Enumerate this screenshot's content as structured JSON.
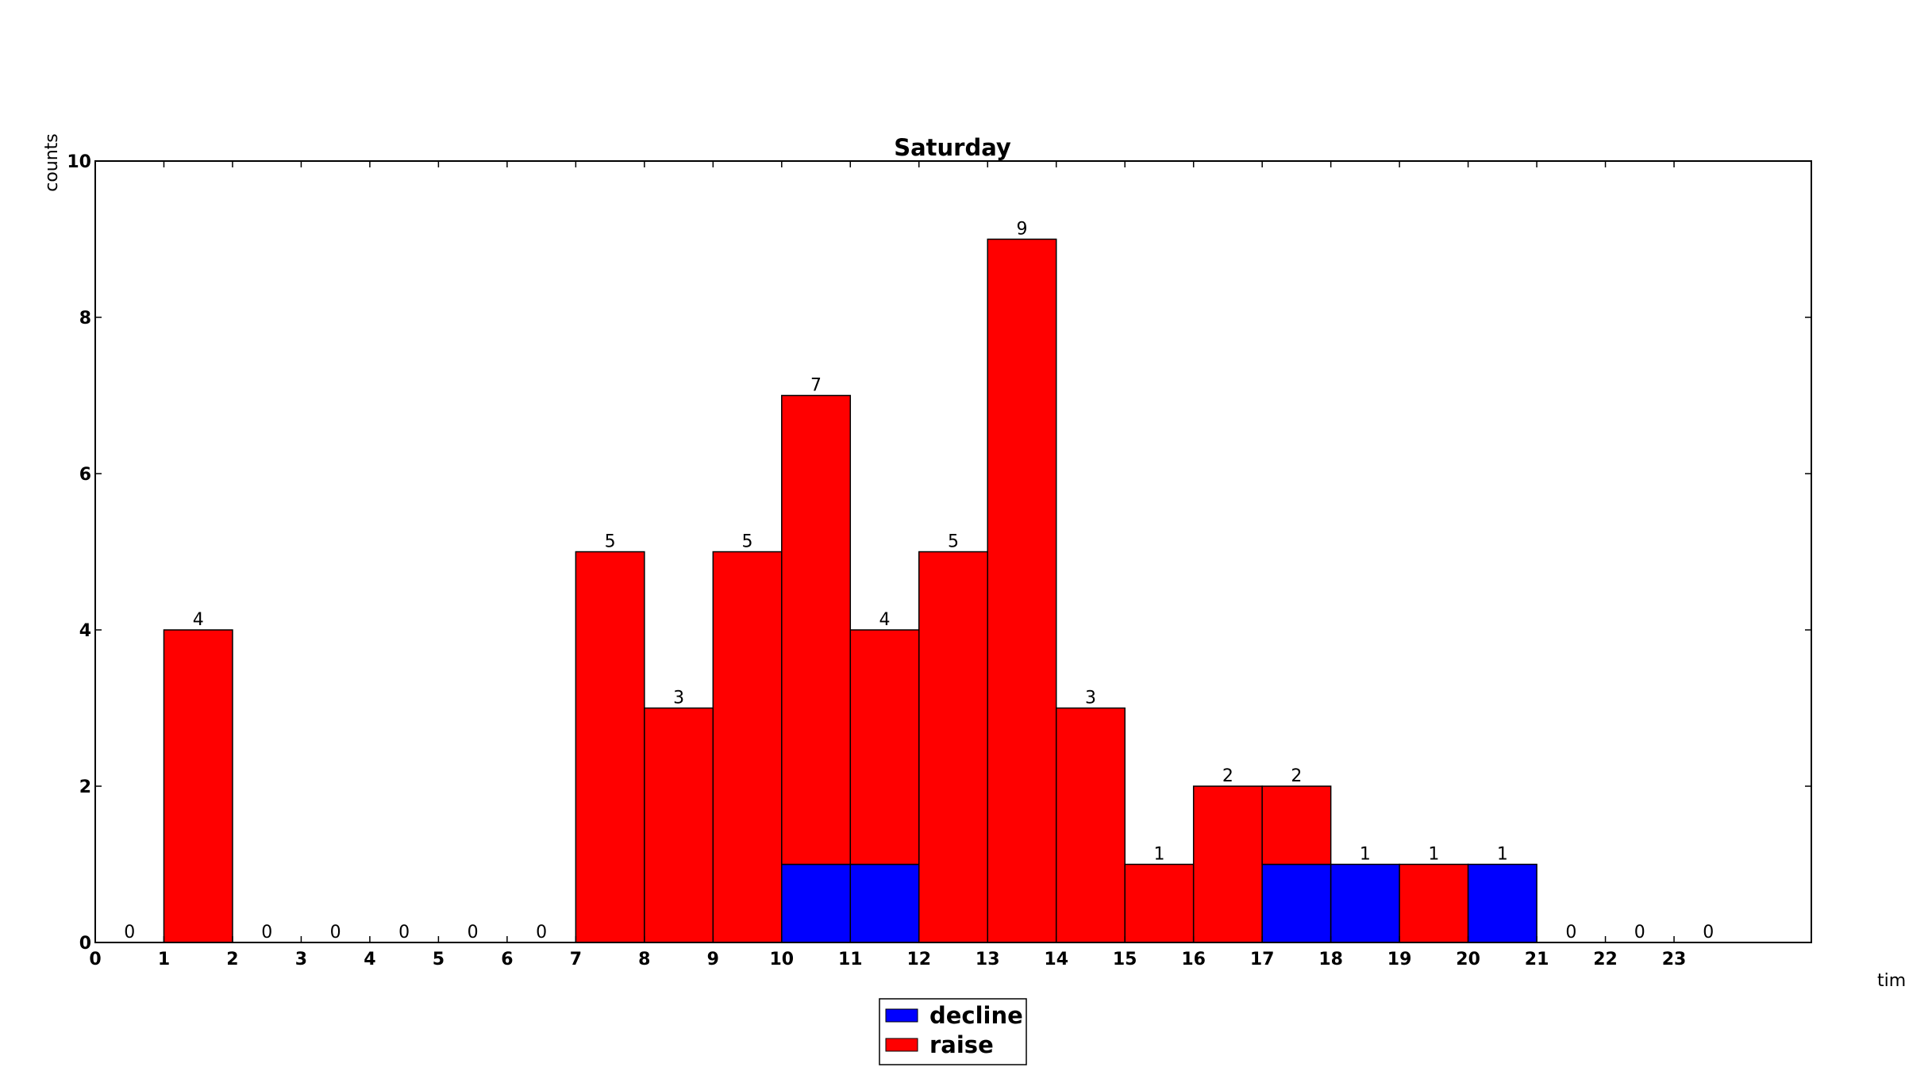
{
  "chart_data": {
    "type": "bar",
    "title": "Saturday",
    "xlabel": "tim",
    "ylabel": "counts",
    "ylim": [
      0,
      10
    ],
    "xlim": [
      0,
      25
    ],
    "yticks": [
      "0",
      "2",
      "4",
      "6",
      "8",
      "10"
    ],
    "categories": [
      "0",
      "1",
      "2",
      "3",
      "4",
      "5",
      "6",
      "7",
      "8",
      "9",
      "10",
      "11",
      "12",
      "13",
      "14",
      "15",
      "16",
      "17",
      "18",
      "19",
      "20",
      "21",
      "22",
      "23"
    ],
    "series": [
      {
        "name": "decline",
        "color": "#0000ff",
        "values": [
          0,
          0,
          0,
          0,
          0,
          0,
          0,
          0,
          0,
          0,
          1,
          1,
          0,
          0,
          0,
          0,
          0,
          1,
          1,
          0,
          1,
          0,
          0,
          0
        ]
      },
      {
        "name": "raise",
        "color": "#ff0000",
        "values": [
          0,
          4,
          0,
          0,
          0,
          0,
          0,
          5,
          3,
          5,
          6,
          3,
          5,
          9,
          3,
          1,
          2,
          1,
          0,
          1,
          0,
          0,
          0,
          0
        ]
      }
    ],
    "totals": [
      0,
      4,
      0,
      0,
      0,
      0,
      0,
      5,
      3,
      5,
      7,
      4,
      5,
      9,
      3,
      1,
      2,
      2,
      1,
      1,
      1,
      0,
      0,
      0
    ],
    "data_labels": [
      "0",
      "4",
      "0",
      "0",
      "0",
      "0",
      "0",
      "5",
      "3",
      "5",
      "7",
      "4",
      "5",
      "9",
      "3",
      "1",
      "2",
      "2",
      "1",
      "1",
      "1",
      "0",
      "0",
      "0"
    ],
    "legend": {
      "position": "bottom-center",
      "entries": [
        "decline",
        "raise"
      ]
    },
    "grid": false
  }
}
